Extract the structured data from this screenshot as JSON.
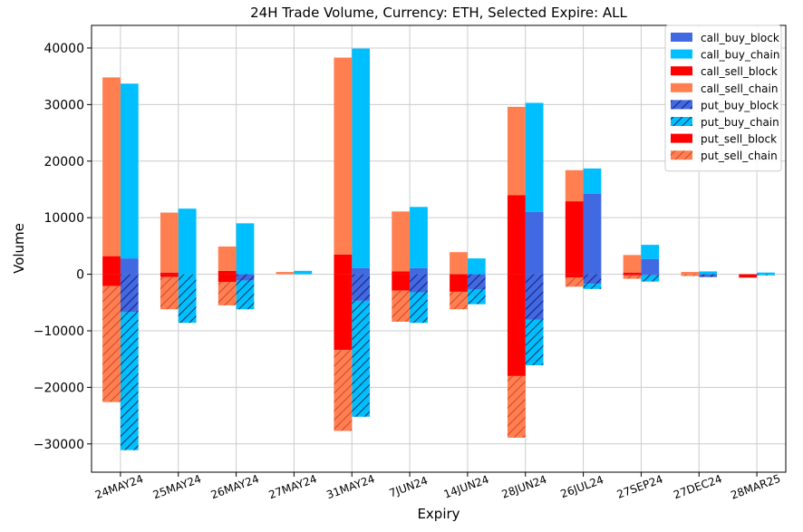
{
  "chart_data": {
    "type": "bar",
    "title": "24H Trade Volume, Currency: ETH, Selected Expire: ALL",
    "xlabel": "Expiry",
    "ylabel": "Volume",
    "ylim": [
      -35000,
      44000
    ],
    "yticks": [
      -30000,
      -20000,
      -10000,
      0,
      10000,
      20000,
      30000,
      40000
    ],
    "ytick_labels": [
      "−30000",
      "−20000",
      "−10000",
      "0",
      "10000",
      "20000",
      "30000",
      "40000"
    ],
    "grid": true,
    "legend_position": "top-right",
    "categories": [
      "24MAY24",
      "25MAY24",
      "26MAY24",
      "27MAY24",
      "31MAY24",
      "7JUN24",
      "14JUN24",
      "28JUN24",
      "26JUL24",
      "27SEP24",
      "27DEC24",
      "28MAR25"
    ],
    "series": [
      {
        "name": "call_buy_block",
        "color": "#4169e1",
        "hatch": false,
        "group": "buy",
        "sign": 1,
        "values": [
          2800,
          0,
          0,
          0,
          1100,
          1100,
          0,
          11000,
          14200,
          2700,
          0,
          0
        ]
      },
      {
        "name": "call_buy_chain",
        "color": "#00bfff",
        "hatch": false,
        "group": "buy",
        "sign": 1,
        "values": [
          30900,
          11600,
          9000,
          600,
          38800,
          10800,
          2800,
          19300,
          4500,
          2500,
          500,
          300
        ]
      },
      {
        "name": "call_sell_block",
        "color": "#ff0000",
        "hatch": false,
        "group": "sell",
        "sign": 1,
        "values": [
          3200,
          300,
          600,
          0,
          3500,
          500,
          0,
          14000,
          12900,
          300,
          0,
          0
        ]
      },
      {
        "name": "call_sell_chain",
        "color": "#ff7f50",
        "hatch": false,
        "group": "sell",
        "sign": 1,
        "values": [
          31600,
          10600,
          4300,
          400,
          34800,
          10600,
          3900,
          15600,
          5500,
          3100,
          400,
          0
        ]
      },
      {
        "name": "put_buy_block",
        "color": "#4169e1",
        "hatch": true,
        "group": "buy",
        "sign": -1,
        "values": [
          6700,
          0,
          1100,
          0,
          4700,
          3200,
          2700,
          8000,
          1700,
          200,
          500,
          0
        ]
      },
      {
        "name": "put_buy_chain",
        "color": "#00bfff",
        "hatch": true,
        "group": "buy",
        "sign": -1,
        "values": [
          24400,
          8600,
          5100,
          0,
          20500,
          5400,
          2600,
          8100,
          900,
          1100,
          0,
          200
        ]
      },
      {
        "name": "put_sell_block",
        "color": "#ff0000",
        "hatch": false,
        "group": "sell",
        "sign": -1,
        "values": [
          2100,
          500,
          1400,
          0,
          13400,
          2900,
          3100,
          18000,
          600,
          200,
          0,
          600
        ]
      },
      {
        "name": "put_sell_chain",
        "color": "#ff7f50",
        "hatch": true,
        "group": "sell",
        "sign": -1,
        "values": [
          20500,
          5700,
          4100,
          0,
          14300,
          5500,
          3100,
          10900,
          1600,
          600,
          300,
          0
        ]
      }
    ]
  }
}
